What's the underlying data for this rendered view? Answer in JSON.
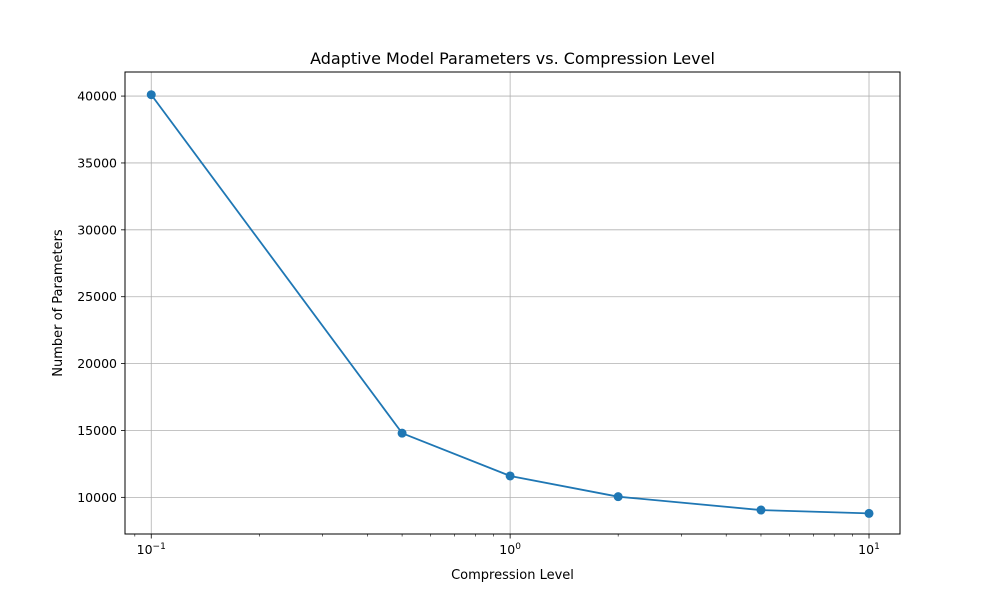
{
  "chart_data": {
    "type": "line",
    "title": "Adaptive Model Parameters vs. Compression Level",
    "xlabel": "Compression Level",
    "ylabel": "Number of Parameters",
    "x_scale": "log",
    "xlim": [
      0.0845,
      12.2
    ],
    "ylim": [
      7260,
      41800
    ],
    "grid": true,
    "x_ticks": [
      {
        "value": 0.1,
        "base": "10",
        "exp": "−1"
      },
      {
        "value": 1,
        "base": "10",
        "exp": "0"
      },
      {
        "value": 10,
        "base": "10",
        "exp": "1"
      }
    ],
    "y_ticks": [
      10000,
      15000,
      20000,
      25000,
      30000,
      35000,
      40000
    ],
    "y_tick_labels": [
      "10000",
      "15000",
      "20000",
      "25000",
      "30000",
      "35000",
      "40000"
    ],
    "series": [
      {
        "color": "#1f77b4",
        "x": [
          0.1,
          0.5,
          1,
          2,
          5,
          10
        ],
        "y": [
          40100,
          14800,
          11600,
          10050,
          9050,
          8800
        ]
      }
    ]
  }
}
